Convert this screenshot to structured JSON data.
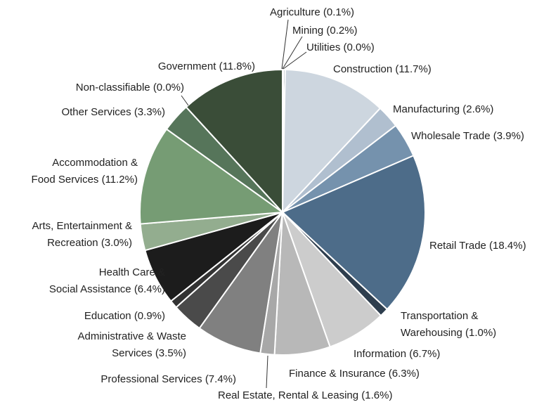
{
  "chart_data": {
    "type": "pie",
    "categories": [
      "Agriculture",
      "Mining",
      "Utilities",
      "Construction",
      "Manufacturing",
      "Wholesale Trade",
      "Retail Trade",
      "Transportation &\nWarehousing",
      "Information",
      "Finance & Insurance",
      "Real Estate, Rental & Leasing",
      "Professional Services",
      "Administrative & Waste\nServices",
      "Education",
      "Health Care &\nSocial Assistance",
      "Arts, Entertainment &\nRecreation",
      "Accommodation &\nFood Services",
      "Other Services",
      "Non-classifiable",
      "Government"
    ],
    "values": [
      0.1,
      0.2,
      0.0,
      11.7,
      2.6,
      3.9,
      18.4,
      1.0,
      6.7,
      6.3,
      1.6,
      7.4,
      3.5,
      0.9,
      6.4,
      3.0,
      11.2,
      3.3,
      0.0,
      11.8
    ],
    "value_labels": [
      "(0.1%)",
      "(0.2%)",
      "(0.0%)",
      "(11.7%)",
      "(2.6%)",
      "(3.9%)",
      "(18.4%)",
      "(1.0%)",
      "(6.7%)",
      "(6.3%)",
      "(1.6%)",
      "(7.4%)",
      "(3.5%)",
      "(0.9%)",
      "(6.4%)",
      "(3.0%)",
      "(11.2%)",
      "(3.3%)",
      "(0.0%)",
      "(11.8%)"
    ],
    "colors": [
      "#8a9a6a",
      "#6d7f8f",
      "#999999",
      "#cdd6df",
      "#b0bfcf",
      "#7592ad",
      "#4d6c89",
      "#2e3e4e",
      "#cccccc",
      "#b8b8b8",
      "#a8a8a8",
      "#808080",
      "#4a4a4a",
      "#333333",
      "#1c1c1c",
      "#93ad8f",
      "#769c74",
      "#56755a",
      "#888888",
      "#3a4d38"
    ]
  }
}
